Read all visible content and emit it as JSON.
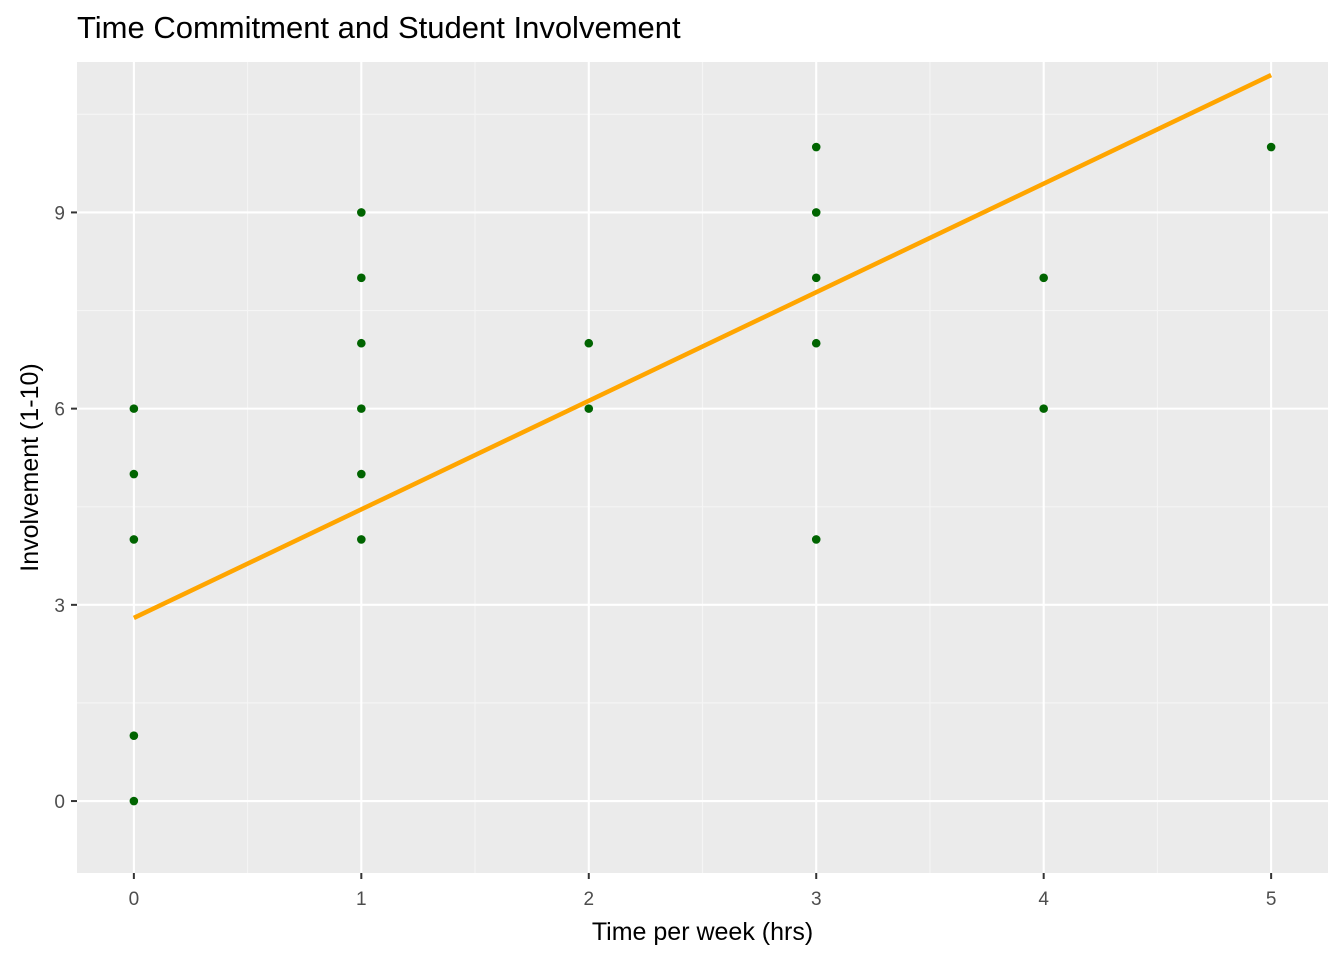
{
  "chart_data": {
    "type": "scatter",
    "title": "Time Commitment and Student Involvement",
    "xlabel": "Time per week (hrs)",
    "ylabel": "Involvement (1-10)",
    "xlim": [
      -0.25,
      5.25
    ],
    "ylim": [
      -1.1,
      11.3
    ],
    "x_ticks": [
      0,
      1,
      2,
      3,
      4,
      5
    ],
    "y_ticks": [
      0,
      3,
      6,
      9
    ],
    "grid": true,
    "legend": "none",
    "colors": {
      "panel_background": "#ebebeb",
      "grid_major": "#ffffff",
      "grid_minor": "#f5f5f5",
      "points": "#006400",
      "trend_line": "#ffa500"
    },
    "points": [
      {
        "x": 0,
        "y": 0
      },
      {
        "x": 0,
        "y": 1
      },
      {
        "x": 0,
        "y": 4
      },
      {
        "x": 0,
        "y": 5
      },
      {
        "x": 0,
        "y": 6
      },
      {
        "x": 1,
        "y": 4
      },
      {
        "x": 1,
        "y": 5
      },
      {
        "x": 1,
        "y": 6
      },
      {
        "x": 1,
        "y": 7
      },
      {
        "x": 1,
        "y": 8
      },
      {
        "x": 1,
        "y": 9
      },
      {
        "x": 2,
        "y": 6
      },
      {
        "x": 2,
        "y": 7
      },
      {
        "x": 3,
        "y": 4
      },
      {
        "x": 3,
        "y": 7
      },
      {
        "x": 3,
        "y": 8
      },
      {
        "x": 3,
        "y": 9
      },
      {
        "x": 3,
        "y": 10
      },
      {
        "x": 4,
        "y": 6
      },
      {
        "x": 4,
        "y": 8
      },
      {
        "x": 5,
        "y": 10
      }
    ],
    "trend_line": {
      "x": [
        0,
        5
      ],
      "y": [
        2.8,
        11.1
      ]
    }
  }
}
